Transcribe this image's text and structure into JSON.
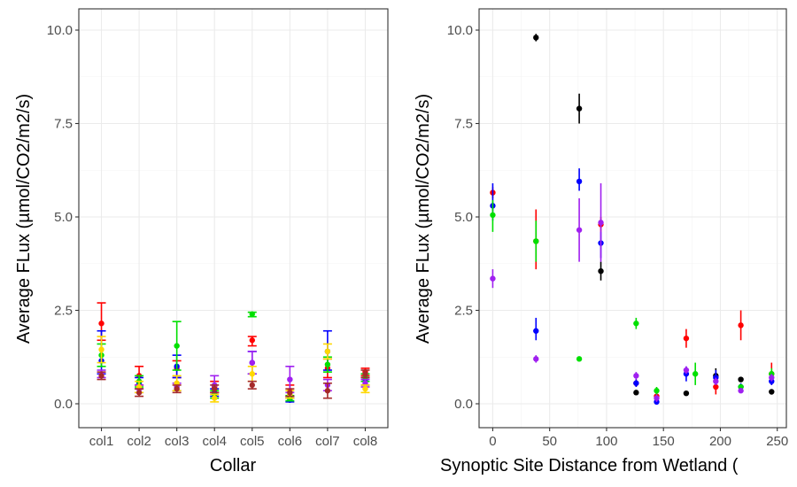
{
  "chart_data": [
    {
      "type": "scatter",
      "title": "",
      "xlabel": "Collar",
      "ylabel": "Average FLux (µmol/CO2/m2/s)",
      "categories": [
        "col1",
        "col2",
        "col3",
        "col4",
        "col5",
        "col6",
        "col7",
        "col8"
      ],
      "y_ticks": [
        "0.0",
        "2.5",
        "5.0",
        "7.5",
        "10.0"
      ],
      "ylim": [
        0,
        10
      ],
      "grid": true,
      "legend": "none",
      "series": [
        {
          "color": "#ff0000",
          "points": [
            {
              "x": "col1",
              "y": 2.15,
              "lo": 1.7,
              "hi": 2.7
            },
            {
              "x": "col2",
              "y": 0.75,
              "lo": 0.5,
              "hi": 1.0
            },
            {
              "x": "col3",
              "y": 0.95,
              "lo": 0.7,
              "hi": 1.15
            },
            {
              "x": "col4",
              "y": 0.45,
              "lo": 0.3,
              "hi": 0.6
            },
            {
              "x": "col5",
              "y": 1.7,
              "lo": 1.55,
              "hi": 1.8
            },
            {
              "x": "col6",
              "y": 0.35,
              "lo": 0.2,
              "hi": 0.5
            },
            {
              "x": "col7",
              "y": 0.95,
              "lo": 0.7,
              "hi": 1.2
            },
            {
              "x": "col8",
              "y": 0.85,
              "lo": 0.75,
              "hi": 0.95
            }
          ]
        },
        {
          "color": "#0000ff",
          "points": [
            {
              "x": "col1",
              "y": 1.15,
              "lo": 0.8,
              "hi": 1.95
            },
            {
              "x": "col2",
              "y": 0.55,
              "lo": 0.4,
              "hi": 0.7
            },
            {
              "x": "col3",
              "y": 1.0,
              "lo": 0.7,
              "hi": 1.3
            },
            {
              "x": "col4",
              "y": 0.3,
              "lo": 0.2,
              "hi": 0.4
            },
            {
              "x": "col5",
              "y": 1.1,
              "lo": 0.8,
              "hi": 1.4
            },
            {
              "x": "col6",
              "y": 0.1,
              "lo": 0.05,
              "hi": 0.15
            },
            {
              "x": "col7",
              "y": 1.4,
              "lo": 0.9,
              "hi": 1.95
            },
            {
              "x": "col8",
              "y": 0.6,
              "lo": 0.5,
              "hi": 0.7
            }
          ]
        },
        {
          "color": "#00e000",
          "points": [
            {
              "x": "col1",
              "y": 1.3,
              "lo": 1.0,
              "hi": 1.6
            },
            {
              "x": "col2",
              "y": 0.6,
              "lo": 0.45,
              "hi": 0.75
            },
            {
              "x": "col3",
              "y": 1.55,
              "lo": 0.9,
              "hi": 2.2
            },
            {
              "x": "col4",
              "y": 0.25,
              "lo": 0.15,
              "hi": 0.35
            },
            {
              "x": "col5",
              "y": 2.4,
              "lo": 2.33,
              "hi": 2.45
            },
            {
              "x": "col6",
              "y": 0.15,
              "lo": 0.08,
              "hi": 0.22
            },
            {
              "x": "col7",
              "y": 1.05,
              "lo": 0.85,
              "hi": 1.25
            },
            {
              "x": "col8",
              "y": 0.7,
              "lo": 0.6,
              "hi": 0.8
            }
          ]
        },
        {
          "color": "#a020f0",
          "points": [
            {
              "x": "col1",
              "y": 0.8,
              "lo": 0.7,
              "hi": 0.9
            },
            {
              "x": "col2",
              "y": 0.4,
              "lo": 0.3,
              "hi": 0.5
            },
            {
              "x": "col3",
              "y": 0.45,
              "lo": 0.35,
              "hi": 0.55
            },
            {
              "x": "col4",
              "y": 0.5,
              "lo": 0.3,
              "hi": 0.75
            },
            {
              "x": "col5",
              "y": 1.1,
              "lo": 0.8,
              "hi": 1.4
            },
            {
              "x": "col6",
              "y": 0.65,
              "lo": 0.3,
              "hi": 1.0
            },
            {
              "x": "col7",
              "y": 0.5,
              "lo": 0.35,
              "hi": 0.65
            },
            {
              "x": "col8",
              "y": 0.55,
              "lo": 0.45,
              "hi": 0.65
            }
          ]
        },
        {
          "color": "#ffd700",
          "points": [
            {
              "x": "col1",
              "y": 1.45,
              "lo": 1.1,
              "hi": 1.8
            },
            {
              "x": "col2",
              "y": 0.45,
              "lo": 0.3,
              "hi": 0.6
            },
            {
              "x": "col3",
              "y": 0.55,
              "lo": 0.35,
              "hi": 0.75
            },
            {
              "x": "col4",
              "y": 0.15,
              "lo": 0.05,
              "hi": 0.25
            },
            {
              "x": "col5",
              "y": 0.8,
              "lo": 0.6,
              "hi": 1.0
            },
            {
              "x": "col6",
              "y": 0.25,
              "lo": 0.15,
              "hi": 0.35
            },
            {
              "x": "col7",
              "y": 1.4,
              "lo": 1.2,
              "hi": 1.6
            },
            {
              "x": "col8",
              "y": 0.4,
              "lo": 0.3,
              "hi": 0.5
            }
          ]
        },
        {
          "color": "#a52a2a",
          "points": [
            {
              "x": "col1",
              "y": 0.75,
              "lo": 0.65,
              "hi": 0.85
            },
            {
              "x": "col2",
              "y": 0.3,
              "lo": 0.2,
              "hi": 0.4
            },
            {
              "x": "col3",
              "y": 0.4,
              "lo": 0.3,
              "hi": 0.5
            },
            {
              "x": "col4",
              "y": 0.4,
              "lo": 0.3,
              "hi": 0.5
            },
            {
              "x": "col5",
              "y": 0.5,
              "lo": 0.4,
              "hi": 0.6
            },
            {
              "x": "col6",
              "y": 0.3,
              "lo": 0.2,
              "hi": 0.4
            },
            {
              "x": "col7",
              "y": 0.35,
              "lo": 0.15,
              "hi": 0.55
            },
            {
              "x": "col8",
              "y": 0.8,
              "lo": 0.7,
              "hi": 0.9
            }
          ]
        }
      ]
    },
    {
      "type": "scatter",
      "title": "",
      "xlabel": "Synoptic Site Distance from Wetland (",
      "ylabel": "Average FLux (µmol/CO2/m2/s)",
      "x_ticks": [
        0,
        50,
        100,
        150,
        200,
        250
      ],
      "y_ticks": [
        "0.0",
        "2.5",
        "5.0",
        "7.5",
        "10.0"
      ],
      "xlim": [
        -12,
        258
      ],
      "ylim": [
        0,
        10
      ],
      "grid": true,
      "legend": "none",
      "series": [
        {
          "color": "#000000",
          "points": [
            {
              "x": 38,
              "y": 9.8,
              "lo": 9.7,
              "hi": 9.9
            },
            {
              "x": 76,
              "y": 7.9,
              "lo": 7.5,
              "hi": 8.3
            },
            {
              "x": 95,
              "y": 3.55,
              "lo": 3.3,
              "hi": 3.8
            },
            {
              "x": 126,
              "y": 0.3,
              "lo": 0.25,
              "hi": 0.35
            },
            {
              "x": 170,
              "y": 0.28,
              "lo": 0.23,
              "hi": 0.33
            },
            {
              "x": 196,
              "y": 0.75,
              "lo": 0.55,
              "hi": 0.95
            },
            {
              "x": 218,
              "y": 0.65,
              "lo": 0.6,
              "hi": 0.7
            },
            {
              "x": 245,
              "y": 0.32,
              "lo": 0.27,
              "hi": 0.37
            }
          ]
        },
        {
          "color": "#ff0000",
          "points": [
            {
              "x": 0,
              "y": 5.65,
              "lo": 5.5,
              "hi": 5.8
            },
            {
              "x": 38,
              "y": 4.35,
              "lo": 3.6,
              "hi": 5.2
            },
            {
              "x": 95,
              "y": 4.8,
              "lo": 4.6,
              "hi": 5.0
            },
            {
              "x": 126,
              "y": 0.55,
              "lo": 0.45,
              "hi": 0.65
            },
            {
              "x": 144,
              "y": 0.2,
              "lo": 0.12,
              "hi": 0.28
            },
            {
              "x": 170,
              "y": 1.75,
              "lo": 1.5,
              "hi": 2.0
            },
            {
              "x": 196,
              "y": 0.45,
              "lo": 0.25,
              "hi": 0.65
            },
            {
              "x": 218,
              "y": 2.1,
              "lo": 1.7,
              "hi": 2.5
            },
            {
              "x": 245,
              "y": 0.8,
              "lo": 0.5,
              "hi": 1.1
            }
          ]
        },
        {
          "color": "#0000ff",
          "points": [
            {
              "x": 0,
              "y": 5.3,
              "lo": 4.9,
              "hi": 5.9
            },
            {
              "x": 38,
              "y": 1.95,
              "lo": 1.7,
              "hi": 2.3
            },
            {
              "x": 76,
              "y": 5.95,
              "lo": 5.7,
              "hi": 6.3
            },
            {
              "x": 95,
              "y": 4.3,
              "lo": 3.9,
              "hi": 4.6
            },
            {
              "x": 126,
              "y": 0.55,
              "lo": 0.45,
              "hi": 0.65
            },
            {
              "x": 144,
              "y": 0.05,
              "lo": 0.0,
              "hi": 0.1
            },
            {
              "x": 170,
              "y": 0.8,
              "lo": 0.6,
              "hi": 1.0
            },
            {
              "x": 196,
              "y": 0.7,
              "lo": 0.5,
              "hi": 0.9
            },
            {
              "x": 218,
              "y": 0.45,
              "lo": 0.35,
              "hi": 0.55
            },
            {
              "x": 245,
              "y": 0.6,
              "lo": 0.5,
              "hi": 0.7
            }
          ]
        },
        {
          "color": "#00e000",
          "points": [
            {
              "x": 0,
              "y": 5.05,
              "lo": 4.6,
              "hi": 5.45
            },
            {
              "x": 38,
              "y": 4.35,
              "lo": 3.8,
              "hi": 4.9
            },
            {
              "x": 76,
              "y": 1.2,
              "lo": 1.15,
              "hi": 1.25
            },
            {
              "x": 126,
              "y": 2.15,
              "lo": 2.0,
              "hi": 2.3
            },
            {
              "x": 144,
              "y": 0.35,
              "lo": 0.25,
              "hi": 0.45
            },
            {
              "x": 178,
              "y": 0.8,
              "lo": 0.5,
              "hi": 1.1
            },
            {
              "x": 218,
              "y": 0.45,
              "lo": 0.4,
              "hi": 0.5
            },
            {
              "x": 245,
              "y": 0.8,
              "lo": 0.65,
              "hi": 0.95
            }
          ]
        },
        {
          "color": "#a020f0",
          "points": [
            {
              "x": 0,
              "y": 3.35,
              "lo": 3.1,
              "hi": 3.6
            },
            {
              "x": 38,
              "y": 1.2,
              "lo": 1.1,
              "hi": 1.3
            },
            {
              "x": 76,
              "y": 4.65,
              "lo": 3.8,
              "hi": 5.5
            },
            {
              "x": 95,
              "y": 4.85,
              "lo": 3.8,
              "hi": 5.9
            },
            {
              "x": 126,
              "y": 0.75,
              "lo": 0.65,
              "hi": 0.85
            },
            {
              "x": 144,
              "y": 0.15,
              "lo": 0.05,
              "hi": 0.25
            },
            {
              "x": 170,
              "y": 0.9,
              "lo": 0.8,
              "hi": 1.0
            },
            {
              "x": 196,
              "y": 0.6,
              "lo": 0.5,
              "hi": 0.7
            },
            {
              "x": 218,
              "y": 0.35,
              "lo": 0.3,
              "hi": 0.4
            },
            {
              "x": 245,
              "y": 0.7,
              "lo": 0.6,
              "hi": 0.8
            }
          ]
        }
      ]
    }
  ]
}
